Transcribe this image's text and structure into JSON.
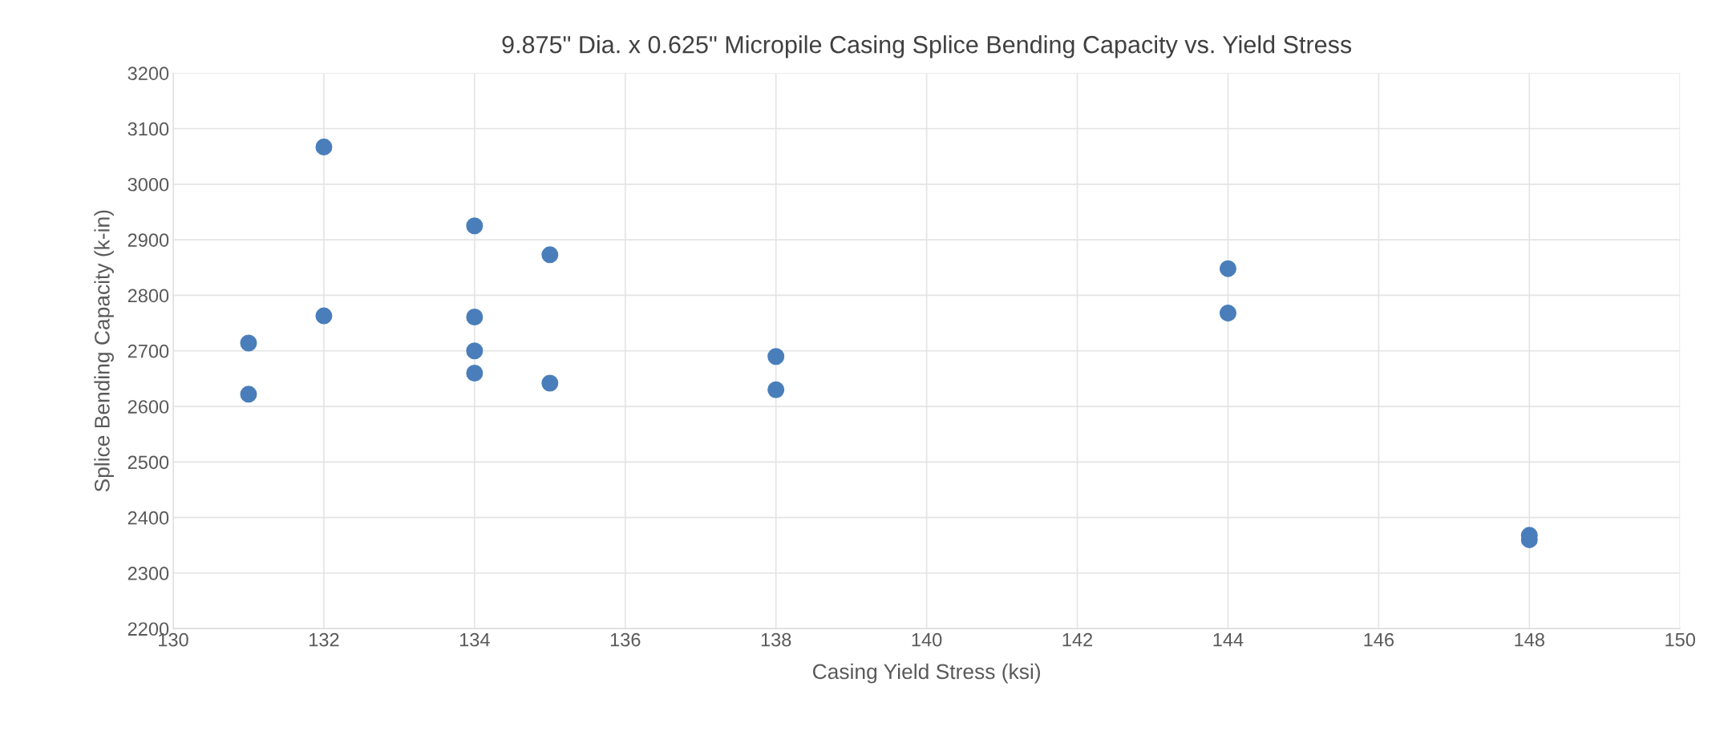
{
  "chart_data": {
    "type": "scatter",
    "title": "9.875\" Dia. x 0.625\" Micropile Casing Splice Bending Capacity vs. Yield Stress",
    "xlabel": "Casing Yield Stress (ksi)",
    "ylabel": "Splice Bending Capacity (k-in)",
    "x": [
      131,
      131,
      132,
      132,
      134,
      134,
      134,
      134,
      135,
      135,
      138,
      138,
      144,
      144,
      148,
      148
    ],
    "series": [
      {
        "color": "#4a7ebb",
        "values": [
          2714,
          2622,
          3067,
          2763,
          2925,
          2761,
          2700,
          2660,
          2873,
          2642,
          2690,
          2630,
          2848,
          2768,
          2368,
          2360
        ]
      }
    ],
    "xlim": [
      130,
      150
    ],
    "xticks": [
      130,
      132,
      134,
      136,
      138,
      140,
      142,
      144,
      146,
      148,
      150
    ],
    "ylim": [
      2200,
      3200
    ],
    "yticks": [
      2200,
      2300,
      2400,
      2500,
      2600,
      2700,
      2800,
      2900,
      3000,
      3100,
      3200
    ],
    "grid": true,
    "marker": "circle"
  }
}
